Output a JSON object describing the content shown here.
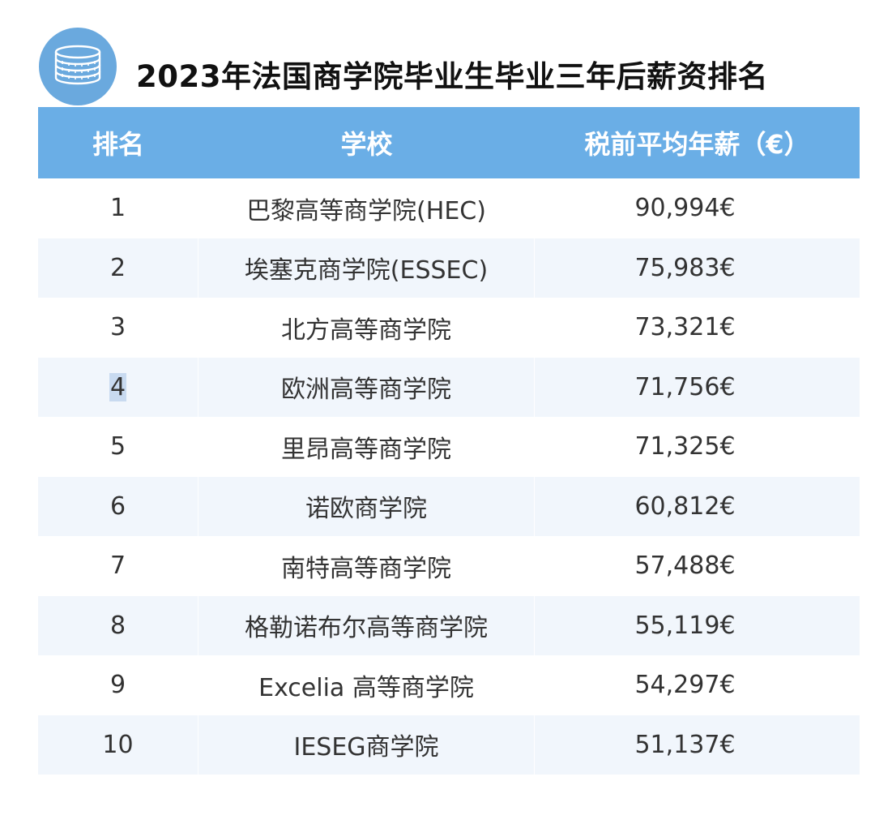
{
  "colors": {
    "accent": "#6aa9de",
    "header_bg": "#6aaee6",
    "row_alt_bg": "#f1f6fc",
    "row_bg": "#ffffff",
    "highlight": "#c8daf0"
  },
  "badge": {
    "icon": "coin-stack-icon"
  },
  "title": "2023年法国商学院毕业生毕业三年后薪资排名",
  "table": {
    "headers": {
      "rank": "排名",
      "school": "学校",
      "salary": "税前平均年薪（€）"
    },
    "rows": [
      {
        "rank": "1",
        "school": "巴黎高等商学院(HEC)",
        "salary": "90,994€"
      },
      {
        "rank": "2",
        "school": "埃塞克商学院(ESSEC)",
        "salary": "75,983€"
      },
      {
        "rank": "3",
        "school": "北方高等商学院",
        "salary": "73,321€"
      },
      {
        "rank": "4",
        "school": "欧洲高等商学院",
        "salary": "71,756€"
      },
      {
        "rank": "5",
        "school": "里昂高等商学院",
        "salary": "71,325€"
      },
      {
        "rank": "6",
        "school": "诺欧商学院",
        "salary": "60,812€"
      },
      {
        "rank": "7",
        "school": "南特高等商学院",
        "salary": "57,488€"
      },
      {
        "rank": "8",
        "school": "格勒诺布尔高等商学院",
        "salary": "55,119€"
      },
      {
        "rank": "9",
        "school": "Excelia 高等商学院",
        "salary": "54,297€"
      },
      {
        "rank": "10",
        "school": "IESEG商学院",
        "salary": "51,137€"
      }
    ]
  }
}
